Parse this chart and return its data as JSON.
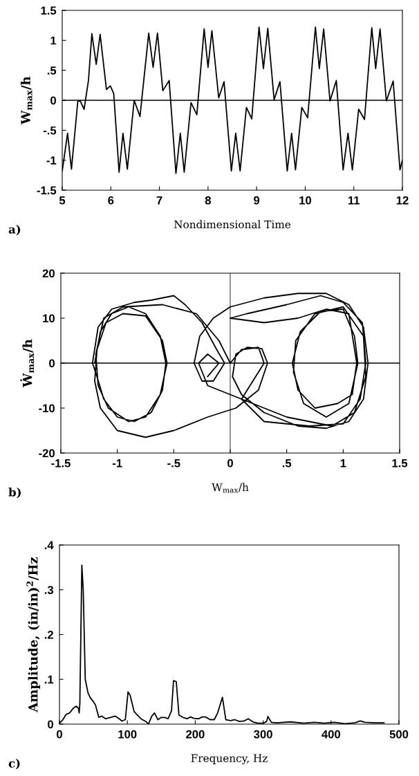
{
  "chart_data": [
    {
      "type": "line",
      "xlabel": "Nondimensional Time",
      "ylabel": "W$_{max}$/h",
      "annotations": [
        "a)"
      ],
      "xlim": [
        5,
        12
      ],
      "ylim": [
        -1.5,
        1.5
      ],
      "xticks": [
        5,
        6,
        7,
        8,
        9,
        10,
        11,
        12
      ],
      "yticks": [
        -1.5,
        -1,
        {
          "value": -0.5,
          "label": "-.5"
        },
        0,
        {
          "value": 0.5,
          "label": ".5"
        },
        1,
        1.5
      ],
      "ref_lines": [
        {
          "axis": "y",
          "value": 0,
          "color": "#000000"
        }
      ],
      "grid": false,
      "marker": "none",
      "line_style": "solid",
      "series": [
        {
          "color": "#000000",
          "x": [
            5.0,
            5.11,
            5.19,
            5.32,
            5.37,
            5.45,
            5.54,
            5.61,
            5.7,
            5.78,
            5.91,
            5.99,
            6.06,
            6.17,
            6.25,
            6.34,
            6.48,
            6.6,
            6.78,
            6.87,
            6.96,
            7.07,
            7.2,
            7.34,
            7.43,
            7.51,
            7.65,
            7.77,
            7.92,
            8.0,
            8.08,
            8.22,
            8.33,
            8.48,
            8.57,
            8.66,
            8.79,
            8.9,
            9.05,
            9.14,
            9.23,
            9.36,
            9.48,
            9.63,
            9.72,
            9.8,
            9.93,
            10.05,
            10.21,
            10.29,
            10.38,
            10.51,
            10.64,
            10.78,
            10.88,
            10.97,
            11.1,
            11.22,
            11.37,
            11.45,
            11.54,
            11.67,
            11.81,
            11.95,
            12.0
          ],
          "values": [
            -1.18,
            -0.55,
            -1.15,
            -0.02,
            -0.01,
            -0.15,
            0.33,
            1.11,
            0.6,
            1.1,
            0.18,
            0.24,
            0.11,
            -1.2,
            -0.55,
            -1.15,
            0.0,
            -0.27,
            1.12,
            0.55,
            1.12,
            0.16,
            0.33,
            -1.22,
            -0.55,
            -1.2,
            -0.04,
            -0.24,
            1.19,
            0.55,
            1.16,
            0.04,
            0.31,
            -1.18,
            -0.55,
            -1.18,
            -0.12,
            -0.31,
            1.22,
            0.53,
            1.2,
            0.01,
            0.31,
            -1.18,
            -0.55,
            -1.16,
            -0.12,
            -0.29,
            1.22,
            0.53,
            1.19,
            -0.01,
            0.33,
            -1.16,
            -0.55,
            -1.16,
            -0.15,
            -0.32,
            1.21,
            0.53,
            1.19,
            -0.01,
            0.32,
            -1.16,
            -1.0
          ]
        }
      ]
    },
    {
      "type": "line",
      "xlabel": "W$_{max}$/h",
      "ylabel": "Ẇ$_{max}$/h",
      "annotations": [
        "b)"
      ],
      "xlim": [
        -1.5,
        1.5
      ],
      "ylim": [
        -20,
        20
      ],
      "xticks": [
        -1.5,
        -1,
        {
          "value": -0.5,
          "label": "-.5"
        },
        0,
        {
          "value": 0.5,
          "label": ".5"
        },
        1,
        1.5
      ],
      "yticks": [
        -20,
        -10,
        0,
        10,
        20
      ],
      "ref_lines": [
        {
          "axis": "y",
          "value": 0,
          "color": "#000000"
        },
        {
          "axis": "x",
          "value": 0,
          "color": "#000000"
        }
      ],
      "grid": false,
      "marker": "none",
      "line_style": "solid",
      "series": [
        {
          "color": "#000000",
          "x": [
            -1.2,
            -1.15,
            -1.05,
            -0.9,
            -0.75,
            -0.62,
            -0.57,
            -0.6,
            -0.7,
            -0.85,
            -1.0,
            -1.12,
            -1.18,
            -1.22,
            -1.17,
            -1.05,
            -0.85,
            -0.7,
            -0.5,
            -0.4,
            -0.25,
            -0.12,
            -0.05,
            -0.15,
            -0.25,
            -0.32,
            -0.27,
            -0.15,
            0.0,
            0.3,
            0.6,
            0.85,
            1.05,
            1.18,
            1.22,
            1.18,
            1.05,
            0.85,
            0.6,
            0.3,
            0.1,
            0.02,
            0.05,
            0.15,
            0.28,
            0.33,
            0.25,
            0.05,
            -0.2,
            -0.5,
            -0.75,
            -1.0,
            -1.15,
            -1.2,
            -1.18,
            -1.1,
            -0.95,
            -0.75,
            -0.6,
            -0.56,
            -0.62,
            -0.75,
            -0.9,
            -1.08,
            -1.17,
            -1.19,
            -1.12,
            -0.95,
            -0.6,
            -0.3,
            -0.1,
            0.0,
            0.1,
            0.25,
            0.3,
            0.1,
            0.3,
            0.7,
            1.0,
            1.15,
            1.2,
            1.17,
            1.0,
            0.8,
            0.5,
            0.15,
            0.0,
            0.3,
            0.6,
            0.85,
            1.05,
            1.12,
            1.08,
            0.95,
            0.75,
            0.6,
            0.55,
            0.62,
            0.8,
            1.0,
            1.1,
            1.13,
            1.05,
            0.85,
            0.65,
            0.56,
            0.58,
            0.75,
            1.0,
            1.18,
            1.2,
            1.1,
            0.9,
            0.5,
            0.2,
            -0.2,
            -0.28,
            -0.2,
            -0.1,
            -0.2
          ],
          "values": [
            0,
            7,
            11,
            12.5,
            11,
            6,
            0,
            -6,
            -11,
            -13,
            -12,
            -8,
            -3,
            0,
            8,
            12,
            13.5,
            14,
            15,
            13,
            9,
            3,
            0,
            -4,
            -4,
            0,
            6,
            10,
            12.5,
            14.5,
            15.5,
            15.5,
            13,
            8,
            0,
            -8,
            -13,
            -14.5,
            -14,
            -11,
            -7,
            -3,
            2,
            3.5,
            3.2,
            0,
            -6,
            -10,
            -12,
            -15,
            -16.5,
            -15,
            -10,
            -4,
            3,
            9,
            11,
            10.5,
            5,
            0,
            -7,
            -12,
            -13,
            -10,
            -5,
            2,
            10,
            12.5,
            13,
            11,
            5,
            0,
            3,
            3.5,
            0,
            -8,
            -13,
            -14,
            -13.5,
            -8,
            0,
            9,
            13.5,
            15,
            13,
            11,
            10,
            9,
            10,
            12,
            11,
            0,
            -7,
            -9,
            -10,
            -6,
            0,
            7,
            11.5,
            12,
            6,
            0,
            -9,
            -12,
            -9,
            -2,
            5,
            11,
            12.5,
            6,
            -3,
            -11,
            -14,
            -12,
            -9,
            -5,
            0,
            2,
            0,
            -3
          ]
        }
      ]
    },
    {
      "type": "line",
      "xlabel": "Frequency, Hz",
      "ylabel": "Amplitude, (in/in)$^{2}$/Hz",
      "annotations": [
        "c)"
      ],
      "xlim": [
        0,
        500
      ],
      "ylim": [
        0,
        0.4
      ],
      "xticks": [
        0,
        100,
        200,
        300,
        400,
        500
      ],
      "yticks": [
        0,
        {
          "value": 0.1,
          "label": ".1"
        },
        {
          "value": 0.2,
          "label": ".2"
        },
        {
          "value": 0.3,
          "label": ".3"
        },
        {
          "value": 0.4,
          "label": ".4"
        }
      ],
      "grid": false,
      "marker": "none",
      "line_style": "solid",
      "series": [
        {
          "color": "#000000",
          "x": [
            0,
            5,
            10,
            15,
            20,
            25,
            28,
            29,
            30,
            33,
            35,
            38,
            42,
            45,
            50,
            53,
            58,
            62,
            68,
            75,
            82,
            88,
            92,
            97,
            101,
            104,
            110,
            115,
            120,
            128,
            131,
            136,
            140,
            145,
            150,
            155,
            160,
            165,
            168,
            172,
            176,
            182,
            188,
            193,
            198,
            205,
            210,
            215,
            222,
            228,
            233,
            240,
            245,
            252,
            258,
            265,
            272,
            278,
            285,
            292,
            300,
            305,
            307,
            312,
            320,
            340,
            360,
            375,
            390,
            405,
            420,
            435,
            443,
            450,
            465,
            478
          ],
          "values": [
            0.002,
            0.01,
            0.022,
            0.025,
            0.035,
            0.04,
            0.035,
            0.025,
            0.045,
            0.355,
            0.3,
            0.1,
            0.07,
            0.06,
            0.05,
            0.043,
            0.015,
            0.018,
            0.012,
            0.015,
            0.018,
            0.012,
            0.007,
            0.01,
            0.072,
            0.065,
            0.028,
            0.02,
            0.012,
            0.005,
            0.0,
            0.018,
            0.025,
            0.01,
            0.015,
            0.015,
            0.012,
            0.03,
            0.097,
            0.095,
            0.02,
            0.015,
            0.012,
            0.016,
            0.013,
            0.012,
            0.016,
            0.016,
            0.01,
            0.01,
            0.025,
            0.06,
            0.01,
            0.008,
            0.01,
            0.006,
            0.007,
            0.012,
            0.005,
            0.002,
            0.002,
            0.006,
            0.017,
            0.004,
            0.003,
            0.005,
            0.002,
            0.004,
            0.002,
            0.004,
            0.001,
            0.003,
            0.007,
            0.004,
            0.003,
            0.003
          ]
        }
      ]
    }
  ]
}
